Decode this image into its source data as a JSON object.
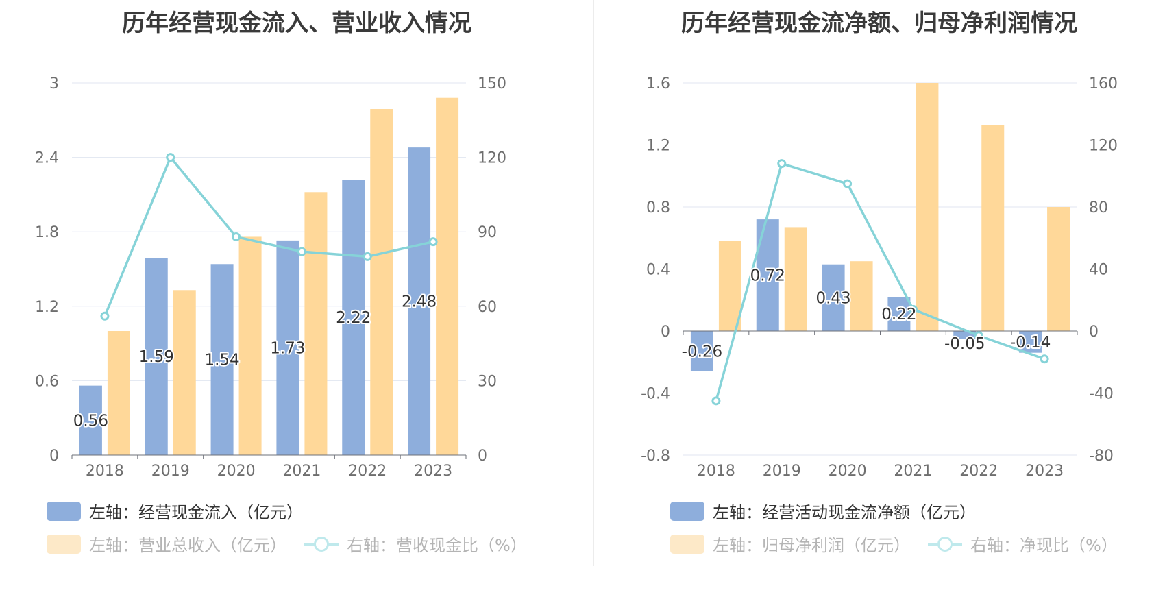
{
  "charts": [
    {
      "id": "left",
      "title": "历年经营现金流入、营业收入情况",
      "chart_data": {
        "type": "bar",
        "categories": [
          "2018",
          "2019",
          "2020",
          "2021",
          "2022",
          "2023"
        ],
        "series": [
          {
            "name": "左轴：经营现金流入（亿元）",
            "axis": "left",
            "kind": "bar",
            "color": "#8eaedc",
            "values": [
              0.56,
              1.59,
              1.54,
              1.73,
              2.22,
              2.48
            ],
            "labels": [
              "0.56",
              "1.59",
              "1.54",
              "1.73",
              "2.22",
              "2.48"
            ]
          },
          {
            "name": "左轴：营业总收入（亿元）",
            "axis": "left",
            "kind": "bar",
            "color": "#ffd899",
            "values": [
              1.0,
              1.33,
              1.76,
              2.12,
              2.79,
              2.88
            ]
          },
          {
            "name": "右轴：营收现金比（%）",
            "axis": "right",
            "kind": "line",
            "color": "#86d3d8",
            "values": [
              56,
              120,
              88,
              82,
              80,
              86
            ]
          }
        ],
        "left_axis": {
          "min": 0,
          "max": 3,
          "ticks": [
            "0",
            "0.6",
            "1.2",
            "1.8",
            "2.4",
            "3"
          ]
        },
        "right_axis": {
          "min": 0,
          "max": 150,
          "ticks": [
            "0",
            "30",
            "60",
            "90",
            "120",
            "150"
          ]
        },
        "grid": true,
        "legend_position": "bottom-left"
      }
    },
    {
      "id": "right",
      "title": "历年经营现金流净额、归母净利润情况",
      "chart_data": {
        "type": "bar",
        "categories": [
          "2018",
          "2019",
          "2020",
          "2021",
          "2022",
          "2023"
        ],
        "series": [
          {
            "name": "左轴：经营活动现金流净额（亿元）",
            "axis": "left",
            "kind": "bar",
            "color": "#8eaedc",
            "values": [
              -0.26,
              0.72,
              0.43,
              0.22,
              -0.05,
              -0.14
            ],
            "labels": [
              "-0.26",
              "0.72",
              "0.43",
              "0.22",
              "-0.05",
              "-0.14"
            ]
          },
          {
            "name": "左轴：归母净利润（亿元）",
            "axis": "left",
            "kind": "bar",
            "color": "#ffd899",
            "values": [
              0.58,
              0.67,
              0.45,
              1.6,
              1.33,
              0.8
            ]
          },
          {
            "name": "右轴：净现比（%）",
            "axis": "right",
            "kind": "line",
            "color": "#86d3d8",
            "values": [
              -45,
              108,
              95,
              14,
              -3,
              -18
            ]
          }
        ],
        "left_axis": {
          "min": -0.8,
          "max": 1.6,
          "ticks": [
            "-0.8",
            "-0.4",
            "0",
            "0.4",
            "0.8",
            "1.2",
            "1.6"
          ]
        },
        "right_axis": {
          "min": -80,
          "max": 160,
          "ticks": [
            "-80",
            "-40",
            "0",
            "40",
            "80",
            "120",
            "160"
          ]
        },
        "grid": true,
        "legend_position": "bottom-left"
      }
    }
  ]
}
